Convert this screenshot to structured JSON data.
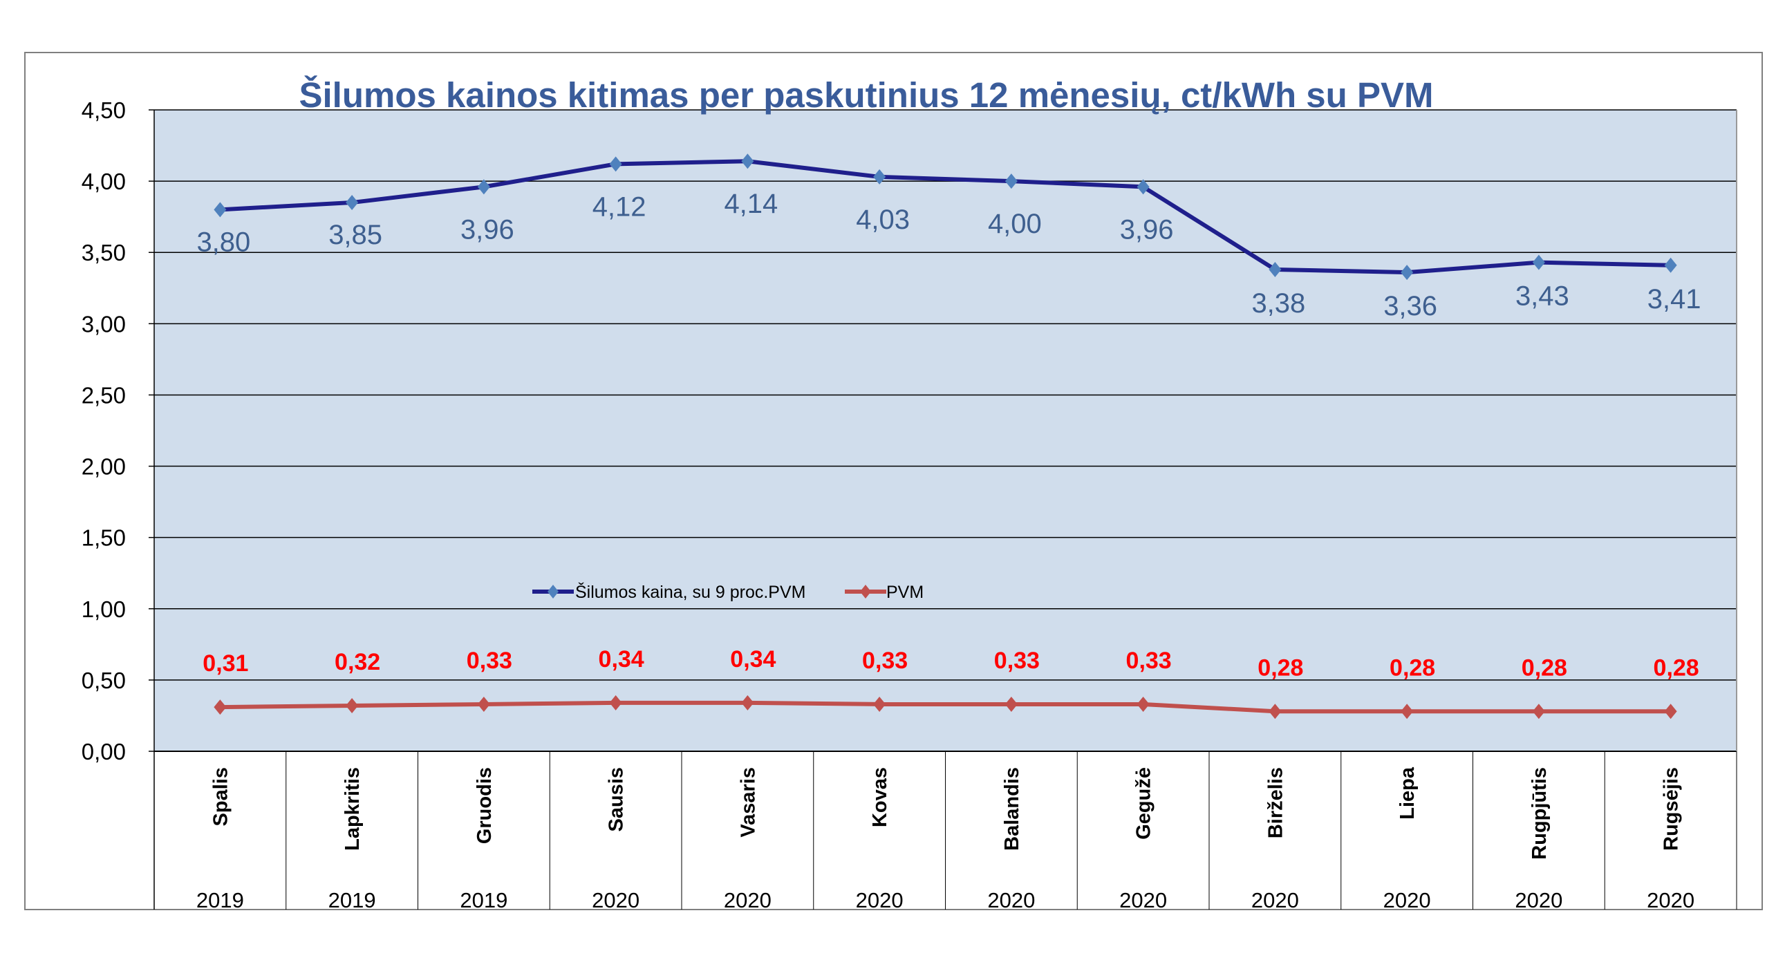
{
  "chart_data": {
    "type": "line",
    "title": "Šilumos kainos kitimas per paskutinius 12 mėnesių, ct/kWh su PVM",
    "categories": [
      "Spalis",
      "Lapkritis",
      "Gruodis",
      "Sausis",
      "Vasaris",
      "Kovas",
      "Balandis",
      "Gegužė",
      "Birželis",
      "Liepa",
      "Rugpjūtis",
      "Rugsėjis"
    ],
    "years": [
      "2019",
      "2019",
      "2019",
      "2020",
      "2020",
      "2020",
      "2020",
      "2020",
      "2020",
      "2020",
      "2020",
      "2020"
    ],
    "series": [
      {
        "name": "Šilumos kaina, su 9 proc.PVM",
        "color": "#1F1F8C",
        "marker_color": "#4F81BD",
        "label_color": "#3E5F8F",
        "values": [
          3.8,
          3.85,
          3.96,
          4.12,
          4.14,
          4.03,
          4.0,
          3.96,
          3.38,
          3.36,
          3.43,
          3.41
        ],
        "labels": [
          "3,80",
          "3,85",
          "3,96",
          "4,12",
          "4,14",
          "4,03",
          "4,00",
          "3,96",
          "3,38",
          "3,36",
          "3,43",
          "3,41"
        ]
      },
      {
        "name": "PVM",
        "color": "#C0504D",
        "marker_color": "#C0504D",
        "label_color": "#FF0000",
        "values": [
          0.31,
          0.32,
          0.33,
          0.34,
          0.34,
          0.33,
          0.33,
          0.33,
          0.28,
          0.28,
          0.28,
          0.28
        ],
        "labels": [
          "0,31",
          "0,32",
          "0,33",
          "0,34",
          "0,34",
          "0,33",
          "0,33",
          "0,33",
          "0,28",
          "0,28",
          "0,28",
          "0,28"
        ]
      }
    ],
    "ylim": [
      0,
      4.5
    ],
    "yticks": [
      0,
      0.5,
      1,
      1.5,
      2,
      2.5,
      3,
      3.5,
      4,
      4.5
    ],
    "ytick_labels": [
      "0,00",
      "0,50",
      "1,00",
      "1,50",
      "2,00",
      "2,50",
      "3,00",
      "3,50",
      "4,00",
      "4,50"
    ],
    "grid": true,
    "legend": "center",
    "plot_background": "#D0DDEC"
  }
}
